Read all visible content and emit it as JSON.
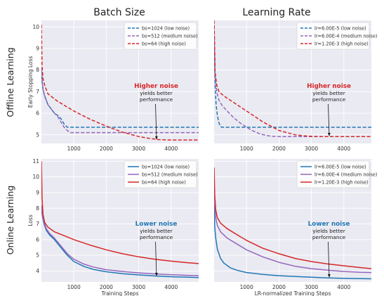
{
  "figure": {
    "col_titles": [
      "Batch Size",
      "Learning Rate"
    ],
    "row_titles": [
      "Offline Learning",
      "Online Learning"
    ]
  },
  "colors": {
    "blue": "#1f77b4",
    "purple": "#9467bd",
    "red": "#d62728",
    "grid_bg": "#eaeaf2"
  },
  "chart_data": [
    {
      "type": "line",
      "id": "offline-batch",
      "xlabel": "",
      "ylabel": "Early Stopping Loss",
      "xlim": [
        0,
        4850
      ],
      "ylim": [
        4.6,
        10.3
      ],
      "xticks": [
        1000,
        2000,
        3000,
        4000
      ],
      "yticks": [
        5,
        6,
        7,
        8,
        9,
        10
      ],
      "line_style": "dashed",
      "legend_position": "top-right",
      "series": [
        {
          "name": "bs=1024 (low noise)",
          "color": "#1f77b4",
          "x": [
            0,
            20,
            50,
            100,
            200,
            300,
            400,
            500,
            600,
            700,
            800,
            4850
          ],
          "y": [
            8.0,
            7.5,
            7.1,
            6.8,
            6.4,
            6.2,
            6.0,
            5.9,
            5.75,
            5.5,
            5.35,
            5.35
          ]
        },
        {
          "name": "bs=512 (medium noise)",
          "color": "#9467bd",
          "x": [
            0,
            20,
            50,
            100,
            200,
            300,
            400,
            500,
            600,
            700,
            800,
            900,
            1000,
            4850
          ],
          "y": [
            8.1,
            7.5,
            7.1,
            6.8,
            6.4,
            6.2,
            6.0,
            5.85,
            5.6,
            5.35,
            5.2,
            5.1,
            5.1,
            5.1
          ]
        },
        {
          "name": "bs=64 (high noise)",
          "color": "#d62728",
          "x": [
            0,
            20,
            50,
            100,
            200,
            500,
            1000,
            1500,
            2000,
            2500,
            3000,
            3300,
            3600,
            4000,
            4850
          ],
          "y": [
            10.1,
            8.2,
            7.6,
            7.3,
            6.9,
            6.55,
            6.1,
            5.72,
            5.4,
            5.12,
            4.92,
            4.84,
            4.78,
            4.76,
            4.76
          ]
        }
      ],
      "annotation": {
        "highlight": "Higher noise",
        "line1": "yields better",
        "line2": "performance",
        "arrow_to": [
          3550,
          4.76
        ]
      }
    },
    {
      "type": "line",
      "id": "offline-lr",
      "xlabel": "",
      "ylabel": "",
      "xlim": [
        0,
        4850
      ],
      "ylim": [
        4.6,
        10.3
      ],
      "xticks": [
        1000,
        2000,
        3000,
        4000
      ],
      "yticks": [],
      "line_style": "dashed",
      "legend_position": "top-right",
      "series": [
        {
          "name": "lr=6.00E-5 (low noise)",
          "color": "#1f77b4",
          "x": [
            0,
            30,
            60,
            100,
            150,
            200,
            250,
            4850
          ],
          "y": [
            9.5,
            7.3,
            6.4,
            5.9,
            5.55,
            5.38,
            5.35,
            5.35
          ]
        },
        {
          "name": "lr=6.00E-4 (medium noise)",
          "color": "#9467bd",
          "x": [
            0,
            30,
            80,
            150,
            250,
            400,
            600,
            800,
            1000,
            1200,
            1400,
            1600,
            1800,
            2000,
            4850
          ],
          "y": [
            10.1,
            7.7,
            7.0,
            6.6,
            6.35,
            6.1,
            5.8,
            5.55,
            5.35,
            5.18,
            5.05,
            4.97,
            4.93,
            4.92,
            4.92
          ]
        },
        {
          "name": "lr=1.20E-3 (high noise)",
          "color": "#d62728",
          "x": [
            0,
            30,
            80,
            150,
            300,
            500,
            800,
            1000,
            1500,
            2000,
            2500,
            2800,
            3000,
            3300,
            3600,
            4850
          ],
          "y": [
            10.3,
            7.9,
            7.3,
            7.0,
            6.8,
            6.6,
            6.3,
            6.1,
            5.6,
            5.2,
            5.0,
            4.95,
            4.93,
            4.92,
            4.92,
            4.92
          ]
        }
      ],
      "annotation": {
        "highlight": "Higher noise",
        "line1": "yields better",
        "line2": "performance",
        "arrow_to": [
          3550,
          4.92
        ]
      }
    },
    {
      "type": "line",
      "id": "online-batch",
      "xlabel": "Training Steps",
      "ylabel": "Loss",
      "xlim": [
        0,
        4850
      ],
      "ylim": [
        3.3,
        11.15
      ],
      "xticks": [
        1000,
        2000,
        3000,
        4000
      ],
      "yticks": [
        4,
        5,
        6,
        7,
        8,
        9,
        10,
        11
      ],
      "line_style": "solid",
      "legend_position": "top-right",
      "series": [
        {
          "name": "bs=1024 (low noise)",
          "color": "#1f77b4",
          "x": [
            0,
            30,
            80,
            150,
            250,
            400,
            600,
            800,
            1000,
            1300,
            1600,
            2000,
            2500,
            3000,
            3500,
            4000,
            4500,
            4850
          ],
          "y": [
            8.0,
            7.5,
            7.0,
            6.6,
            6.3,
            6.0,
            5.5,
            5.0,
            4.6,
            4.3,
            4.1,
            3.95,
            3.83,
            3.75,
            3.68,
            3.63,
            3.6,
            3.58
          ]
        },
        {
          "name": "bs=512 (medium noise)",
          "color": "#9467bd",
          "x": [
            0,
            30,
            80,
            150,
            250,
            400,
            600,
            800,
            1000,
            1300,
            1600,
            2000,
            2500,
            3000,
            3500,
            4000,
            4500,
            4850
          ],
          "y": [
            8.2,
            7.6,
            7.1,
            6.7,
            6.4,
            6.1,
            5.6,
            5.1,
            4.75,
            4.45,
            4.25,
            4.08,
            3.97,
            3.88,
            3.81,
            3.76,
            3.72,
            3.7
          ]
        },
        {
          "name": "bs=64 (high noise)",
          "color": "#d62728",
          "x": [
            0,
            20,
            50,
            100,
            200,
            400,
            700,
            1000,
            1500,
            2000,
            2500,
            3000,
            3500,
            4000,
            4500,
            4850
          ],
          "y": [
            11.0,
            8.6,
            7.6,
            7.1,
            6.8,
            6.5,
            6.25,
            6.0,
            5.65,
            5.35,
            5.1,
            4.9,
            4.75,
            4.63,
            4.53,
            4.47
          ]
        }
      ],
      "annotation": {
        "highlight": "Lower noise",
        "line1": "yields better",
        "line2": "performance",
        "arrow_to": [
          3550,
          3.65
        ]
      }
    },
    {
      "type": "line",
      "id": "online-lr",
      "xlabel": "LR-normalized Training Steps",
      "ylabel": "",
      "xlim": [
        0,
        4850
      ],
      "ylim": [
        3.3,
        11.15
      ],
      "xticks": [
        1000,
        2000,
        3000,
        4000
      ],
      "yticks": [],
      "line_style": "solid",
      "legend_position": "top-right",
      "series": [
        {
          "name": "lr=6.00E-5 (low noise)",
          "color": "#1f77b4",
          "x": [
            0,
            20,
            50,
            100,
            200,
            300,
            500,
            700,
            1000,
            1500,
            2000,
            2500,
            3000,
            3500,
            4000,
            4500,
            4850
          ],
          "y": [
            8.2,
            6.8,
            6.1,
            5.4,
            4.8,
            4.5,
            4.2,
            4.05,
            3.9,
            3.78,
            3.7,
            3.65,
            3.6,
            3.56,
            3.53,
            3.51,
            3.5
          ]
        },
        {
          "name": "lr=6.00E-4 (medium noise)",
          "color": "#9467bd",
          "x": [
            0,
            20,
            50,
            100,
            200,
            400,
            600,
            800,
            1000,
            1500,
            2000,
            2500,
            3000,
            3500,
            4000,
            4500,
            4850
          ],
          "y": [
            9.8,
            8.3,
            7.4,
            6.9,
            6.5,
            6.1,
            5.85,
            5.6,
            5.35,
            4.9,
            4.55,
            4.3,
            4.15,
            4.05,
            3.97,
            3.92,
            3.9
          ]
        },
        {
          "name": "lr=1.20E-3 (high noise)",
          "color": "#d62728",
          "x": [
            0,
            20,
            50,
            100,
            200,
            400,
            600,
            800,
            1000,
            1500,
            2000,
            2500,
            3000,
            3500,
            4000,
            4500,
            4850
          ],
          "y": [
            10.6,
            8.8,
            7.9,
            7.4,
            7.05,
            6.7,
            6.45,
            6.2,
            5.95,
            5.45,
            5.1,
            4.8,
            4.6,
            4.45,
            4.33,
            4.22,
            4.15
          ]
        }
      ],
      "annotation": {
        "highlight": "Lower noise",
        "line1": "yields better",
        "line2": "performance",
        "arrow_to": [
          3550,
          3.56
        ]
      }
    }
  ]
}
